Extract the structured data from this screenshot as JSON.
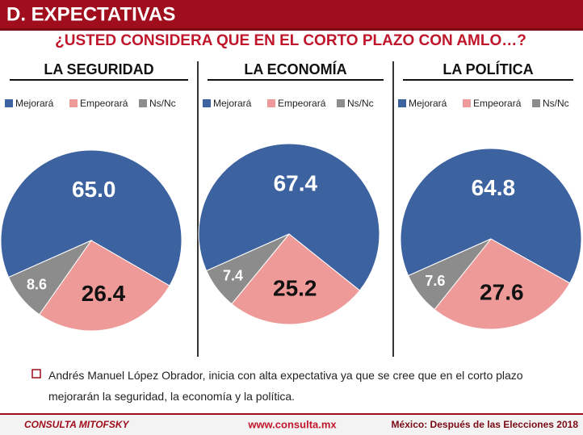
{
  "header": {
    "title": "D. EXPECTATIVAS"
  },
  "question": "¿USTED CONSIDERA QUE EN EL CORTO PLAZO CON AMLO…?",
  "chart_data": [
    {
      "type": "pie",
      "title": "LA SEGURIDAD",
      "categories": [
        "Mejorará",
        "Empeorará",
        "Ns/Nc"
      ],
      "values": [
        65,
        26.4,
        8.6
      ],
      "value_labels": [
        "65.0",
        "26.4",
        "8.6"
      ],
      "colors": [
        "#3d62a0",
        "#ee9a98",
        "#8c8c8c"
      ]
    },
    {
      "type": "pie",
      "title": "LA ECONOMÍA",
      "categories": [
        "Mejorará",
        "Empeorará",
        "Ns/Nc"
      ],
      "values": [
        67.4,
        25.2,
        7.4
      ],
      "colors": [
        "#3d62a0",
        "#ee9a98",
        "#8c8c8c"
      ]
    },
    {
      "type": "pie",
      "title": "LA POLÍTICA",
      "categories": [
        "Mejorará",
        "Empeorará",
        "Ns/Nc"
      ],
      "values": [
        64.8,
        27.6,
        7.6
      ],
      "colors": [
        "#3d62a0",
        "#ee9a98",
        "#8c8c8c"
      ]
    }
  ],
  "note": "Andrés Manuel López Obrador, inicia con alta expectativa ya que se cree que en el corto plazo mejorarán la seguridad, la economía y la política.",
  "footer": {
    "brand": "CONSULTA MITOFSKY",
    "url": "www.consulta.mx",
    "study": "México: Después de las Elecciones 2018"
  }
}
